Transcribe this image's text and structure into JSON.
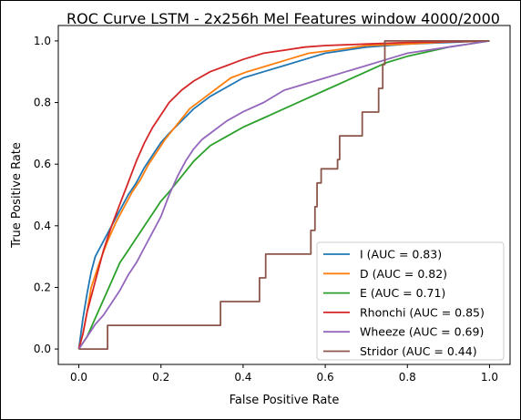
{
  "chart_data": {
    "type": "line",
    "title": "ROC Curve LSTM - 2x256h Mel Features window 4000/2000",
    "xlabel": "False Positive Rate",
    "ylabel": "True Positive Rate",
    "xlim": [
      -0.05,
      1.05
    ],
    "ylim": [
      -0.05,
      1.05
    ],
    "xticks": [
      "0.0",
      "0.2",
      "0.4",
      "0.6",
      "0.8",
      "1.0"
    ],
    "yticks": [
      "0.0",
      "0.2",
      "0.4",
      "0.6",
      "0.8",
      "1.0"
    ],
    "grid": false,
    "legend_position": "lower-right",
    "series": [
      {
        "name": "I (AUC = 0.83)",
        "color": "#1f77b4",
        "points": [
          [
            0,
            0
          ],
          [
            0.01,
            0.1
          ],
          [
            0.02,
            0.18
          ],
          [
            0.03,
            0.25
          ],
          [
            0.04,
            0.3
          ],
          [
            0.06,
            0.35
          ],
          [
            0.08,
            0.4
          ],
          [
            0.1,
            0.45
          ],
          [
            0.12,
            0.5
          ],
          [
            0.14,
            0.54
          ],
          [
            0.16,
            0.59
          ],
          [
            0.18,
            0.63
          ],
          [
            0.2,
            0.67
          ],
          [
            0.22,
            0.7
          ],
          [
            0.25,
            0.74
          ],
          [
            0.28,
            0.78
          ],
          [
            0.32,
            0.82
          ],
          [
            0.36,
            0.85
          ],
          [
            0.4,
            0.88
          ],
          [
            0.45,
            0.9
          ],
          [
            0.5,
            0.92
          ],
          [
            0.55,
            0.94
          ],
          [
            0.6,
            0.96
          ],
          [
            0.65,
            0.97
          ],
          [
            0.7,
            0.98
          ],
          [
            0.8,
            0.99
          ],
          [
            0.9,
            0.995
          ],
          [
            1.0,
            1.0
          ]
        ]
      },
      {
        "name": "D (AUC = 0.82)",
        "color": "#ff7f0e",
        "points": [
          [
            0,
            0
          ],
          [
            0.01,
            0.05
          ],
          [
            0.02,
            0.12
          ],
          [
            0.03,
            0.2
          ],
          [
            0.05,
            0.28
          ],
          [
            0.07,
            0.35
          ],
          [
            0.09,
            0.41
          ],
          [
            0.11,
            0.46
          ],
          [
            0.13,
            0.51
          ],
          [
            0.15,
            0.55
          ],
          [
            0.17,
            0.6
          ],
          [
            0.19,
            0.64
          ],
          [
            0.21,
            0.68
          ],
          [
            0.24,
            0.73
          ],
          [
            0.27,
            0.78
          ],
          [
            0.3,
            0.81
          ],
          [
            0.33,
            0.84
          ],
          [
            0.37,
            0.88
          ],
          [
            0.41,
            0.9
          ],
          [
            0.46,
            0.92
          ],
          [
            0.51,
            0.94
          ],
          [
            0.56,
            0.96
          ],
          [
            0.62,
            0.97
          ],
          [
            0.7,
            0.985
          ],
          [
            0.8,
            0.99
          ],
          [
            0.9,
            0.997
          ],
          [
            1.0,
            1.0
          ]
        ]
      },
      {
        "name": "E (AUC = 0.71)",
        "color": "#2ca02c",
        "points": [
          [
            0,
            0
          ],
          [
            0.02,
            0.04
          ],
          [
            0.04,
            0.1
          ],
          [
            0.06,
            0.16
          ],
          [
            0.08,
            0.22
          ],
          [
            0.1,
            0.28
          ],
          [
            0.12,
            0.32
          ],
          [
            0.14,
            0.36
          ],
          [
            0.16,
            0.4
          ],
          [
            0.18,
            0.44
          ],
          [
            0.2,
            0.48
          ],
          [
            0.22,
            0.51
          ],
          [
            0.25,
            0.56
          ],
          [
            0.28,
            0.61
          ],
          [
            0.32,
            0.66
          ],
          [
            0.36,
            0.69
          ],
          [
            0.4,
            0.72
          ],
          [
            0.45,
            0.75
          ],
          [
            0.5,
            0.78
          ],
          [
            0.55,
            0.81
          ],
          [
            0.6,
            0.84
          ],
          [
            0.65,
            0.87
          ],
          [
            0.7,
            0.9
          ],
          [
            0.75,
            0.93
          ],
          [
            0.8,
            0.95
          ],
          [
            0.9,
            0.98
          ],
          [
            1.0,
            1.0
          ]
        ]
      },
      {
        "name": "Rhonchi (AUC = 0.85)",
        "color": "#d62728",
        "points": [
          [
            0,
            0
          ],
          [
            0.01,
            0.05
          ],
          [
            0.02,
            0.12
          ],
          [
            0.04,
            0.22
          ],
          [
            0.06,
            0.32
          ],
          [
            0.08,
            0.4
          ],
          [
            0.1,
            0.47
          ],
          [
            0.12,
            0.54
          ],
          [
            0.14,
            0.61
          ],
          [
            0.16,
            0.67
          ],
          [
            0.18,
            0.72
          ],
          [
            0.2,
            0.76
          ],
          [
            0.22,
            0.8
          ],
          [
            0.25,
            0.84
          ],
          [
            0.28,
            0.87
          ],
          [
            0.32,
            0.9
          ],
          [
            0.36,
            0.92
          ],
          [
            0.4,
            0.94
          ],
          [
            0.45,
            0.96
          ],
          [
            0.5,
            0.97
          ],
          [
            0.55,
            0.98
          ],
          [
            0.6,
            0.985
          ],
          [
            0.7,
            0.99
          ],
          [
            0.8,
            0.995
          ],
          [
            1.0,
            1.0
          ]
        ]
      },
      {
        "name": "Wheeze (AUC = 0.69)",
        "color": "#9467bd",
        "points": [
          [
            0,
            0
          ],
          [
            0.02,
            0.04
          ],
          [
            0.04,
            0.08
          ],
          [
            0.06,
            0.11
          ],
          [
            0.08,
            0.15
          ],
          [
            0.1,
            0.19
          ],
          [
            0.12,
            0.24
          ],
          [
            0.14,
            0.28
          ],
          [
            0.16,
            0.33
          ],
          [
            0.18,
            0.38
          ],
          [
            0.2,
            0.43
          ],
          [
            0.22,
            0.5
          ],
          [
            0.24,
            0.56
          ],
          [
            0.26,
            0.61
          ],
          [
            0.28,
            0.65
          ],
          [
            0.3,
            0.68
          ],
          [
            0.33,
            0.71
          ],
          [
            0.36,
            0.74
          ],
          [
            0.4,
            0.77
          ],
          [
            0.45,
            0.8
          ],
          [
            0.5,
            0.84
          ],
          [
            0.55,
            0.86
          ],
          [
            0.6,
            0.88
          ],
          [
            0.65,
            0.9
          ],
          [
            0.7,
            0.92
          ],
          [
            0.75,
            0.94
          ],
          [
            0.8,
            0.96
          ],
          [
            0.9,
            0.98
          ],
          [
            1.0,
            1.0
          ]
        ]
      },
      {
        "name": "Stridor (AUC = 0.44)",
        "color": "#8c564b",
        "points": [
          [
            0,
            0
          ],
          [
            0.07,
            0
          ],
          [
            0.07,
            0.077
          ],
          [
            0.345,
            0.077
          ],
          [
            0.345,
            0.154
          ],
          [
            0.44,
            0.154
          ],
          [
            0.44,
            0.231
          ],
          [
            0.455,
            0.231
          ],
          [
            0.455,
            0.308
          ],
          [
            0.565,
            0.308
          ],
          [
            0.565,
            0.385
          ],
          [
            0.575,
            0.385
          ],
          [
            0.575,
            0.462
          ],
          [
            0.58,
            0.462
          ],
          [
            0.58,
            0.539
          ],
          [
            0.59,
            0.539
          ],
          [
            0.59,
            0.585
          ],
          [
            0.63,
            0.585
          ],
          [
            0.63,
            0.615
          ],
          [
            0.635,
            0.615
          ],
          [
            0.635,
            0.692
          ],
          [
            0.69,
            0.692
          ],
          [
            0.69,
            0.769
          ],
          [
            0.73,
            0.769
          ],
          [
            0.73,
            0.846
          ],
          [
            0.74,
            0.846
          ],
          [
            0.74,
            0.923
          ],
          [
            0.745,
            0.923
          ],
          [
            0.745,
            1.0
          ],
          [
            1.0,
            1.0
          ]
        ]
      }
    ]
  }
}
